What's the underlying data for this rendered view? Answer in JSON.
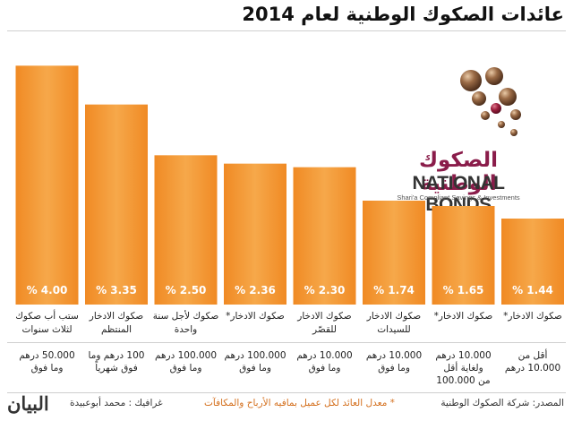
{
  "title": "عائدات الصكوك الوطنية لعام 2014",
  "logo": {
    "arabic": "الصكوك الوطنية",
    "english": "NATIONAL BONDS",
    "tagline": "Shari'a Compliant Savings & Investments"
  },
  "chart_data": {
    "type": "bar",
    "title": "عائدات الصكوك الوطنية لعام 2014",
    "xlabel": "",
    "ylabel": "",
    "ylim": [
      0,
      4.5
    ],
    "categories": [
      "صكوك الادخار*",
      "صكوك الادخار*",
      "صكوك الادخار للسيدات",
      "صكوك الادخار للقصّر",
      "صكوك الادخار*",
      "صكوك لأجل سنة واحدة",
      "صكوك الادخار المنتظم",
      "ستب أب صكوك لثلاث سنوات"
    ],
    "values": [
      1.44,
      1.65,
      1.74,
      2.3,
      2.36,
      2.5,
      3.35,
      4.0
    ],
    "value_labels": [
      "% 1.44",
      "% 1.65",
      "% 1.74",
      "% 2.30",
      "% 2.36",
      "% 2.50",
      "% 3.35",
      "% 4.00"
    ],
    "amounts": [
      "أقل من 10.000 درهم",
      "10.000 درهم ولغاية أقل من 100.000",
      "10.000 درهم وما فوق",
      "10.000 درهم وما فوق",
      "100.000 درهم وما فوق",
      "100.000 درهم وما فوق",
      "100 درهم وما فوق شهرياً",
      "50.000 درهم وما فوق"
    ],
    "bar_color": "#f08a24",
    "bar_color_light": "#f6a84a",
    "grid": false
  },
  "footer": {
    "source": "المصدر: شركة الصكوك الوطنية",
    "note": "* معدل العائد لكل عميل بمافيه الأرباح والمكافآت",
    "graphic": "غرافيك : محمد أبوعبيدة",
    "brand": "البيان"
  }
}
